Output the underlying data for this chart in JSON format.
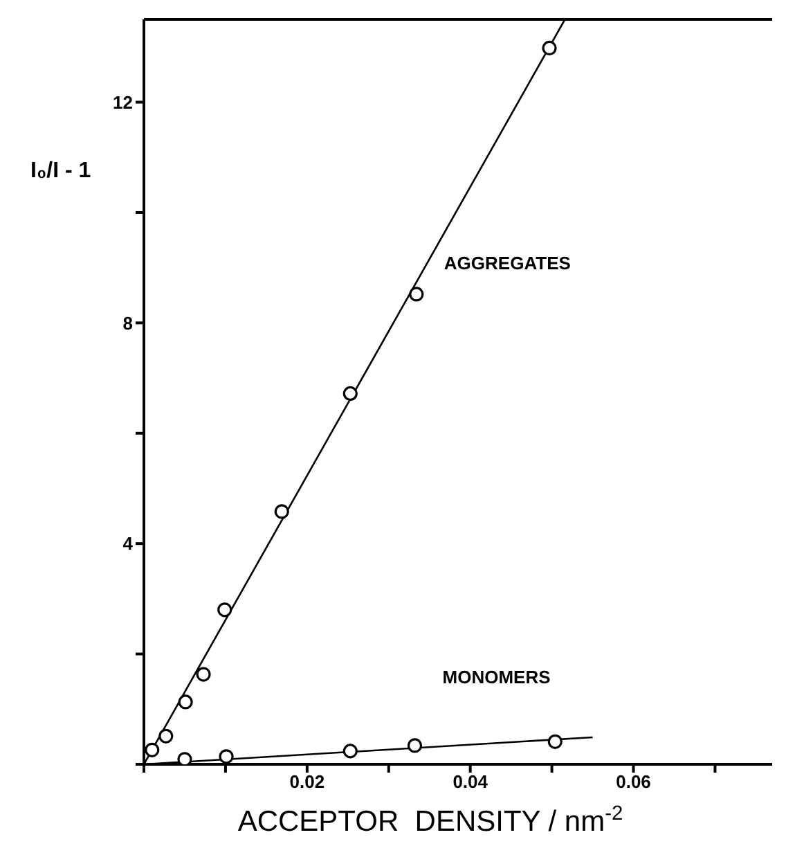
{
  "chart_data": {
    "type": "scatter",
    "xlabel": "ACCEPTOR  DENSITY / nm$^{-2}$",
    "ylabel": "I₀/I - 1",
    "xlim": [
      0,
      0.077
    ],
    "ylim": [
      0,
      13.5
    ],
    "xticks": [
      {
        "value": 0,
        "label": null
      },
      {
        "value": 0.01,
        "label": null
      },
      0.02,
      {
        "value": 0.03,
        "label": null
      },
      0.04,
      {
        "value": 0.05,
        "label": null
      },
      0.06,
      {
        "value": 0.07,
        "label": null
      }
    ],
    "yticks": [
      {
        "value": 0,
        "label": null
      },
      {
        "value": 2,
        "label": null
      },
      4,
      {
        "value": 6,
        "label": null
      },
      8,
      {
        "value": 10,
        "label": null
      },
      12
    ],
    "marker": "circle",
    "series": [
      {
        "name": "AGGREGATES",
        "color": "#000000",
        "x": [
          0.001,
          0.0027,
          0.0051,
          0.0073,
          0.0099,
          0.0169,
          0.0253,
          0.0334,
          0.0497
        ],
        "values": [
          0.26,
          0.51,
          1.13,
          1.63,
          2.8,
          4.58,
          6.72,
          8.52,
          12.98
        ]
      },
      {
        "type": "line",
        "marker": "none",
        "color": "#000000",
        "x": [
          0,
          0.0516
        ],
        "values": [
          0,
          13.5
        ]
      },
      {
        "name": "MONOMERS",
        "color": "#000000",
        "x": [
          0.005,
          0.0101,
          0.0253,
          0.0332,
          0.0504
        ],
        "values": [
          0.09,
          0.14,
          0.24,
          0.34,
          0.41
        ]
      },
      {
        "type": "line",
        "marker": "none",
        "color": "#000000",
        "x": [
          0,
          0.055
        ],
        "values": [
          0,
          0.49
        ]
      }
    ]
  }
}
